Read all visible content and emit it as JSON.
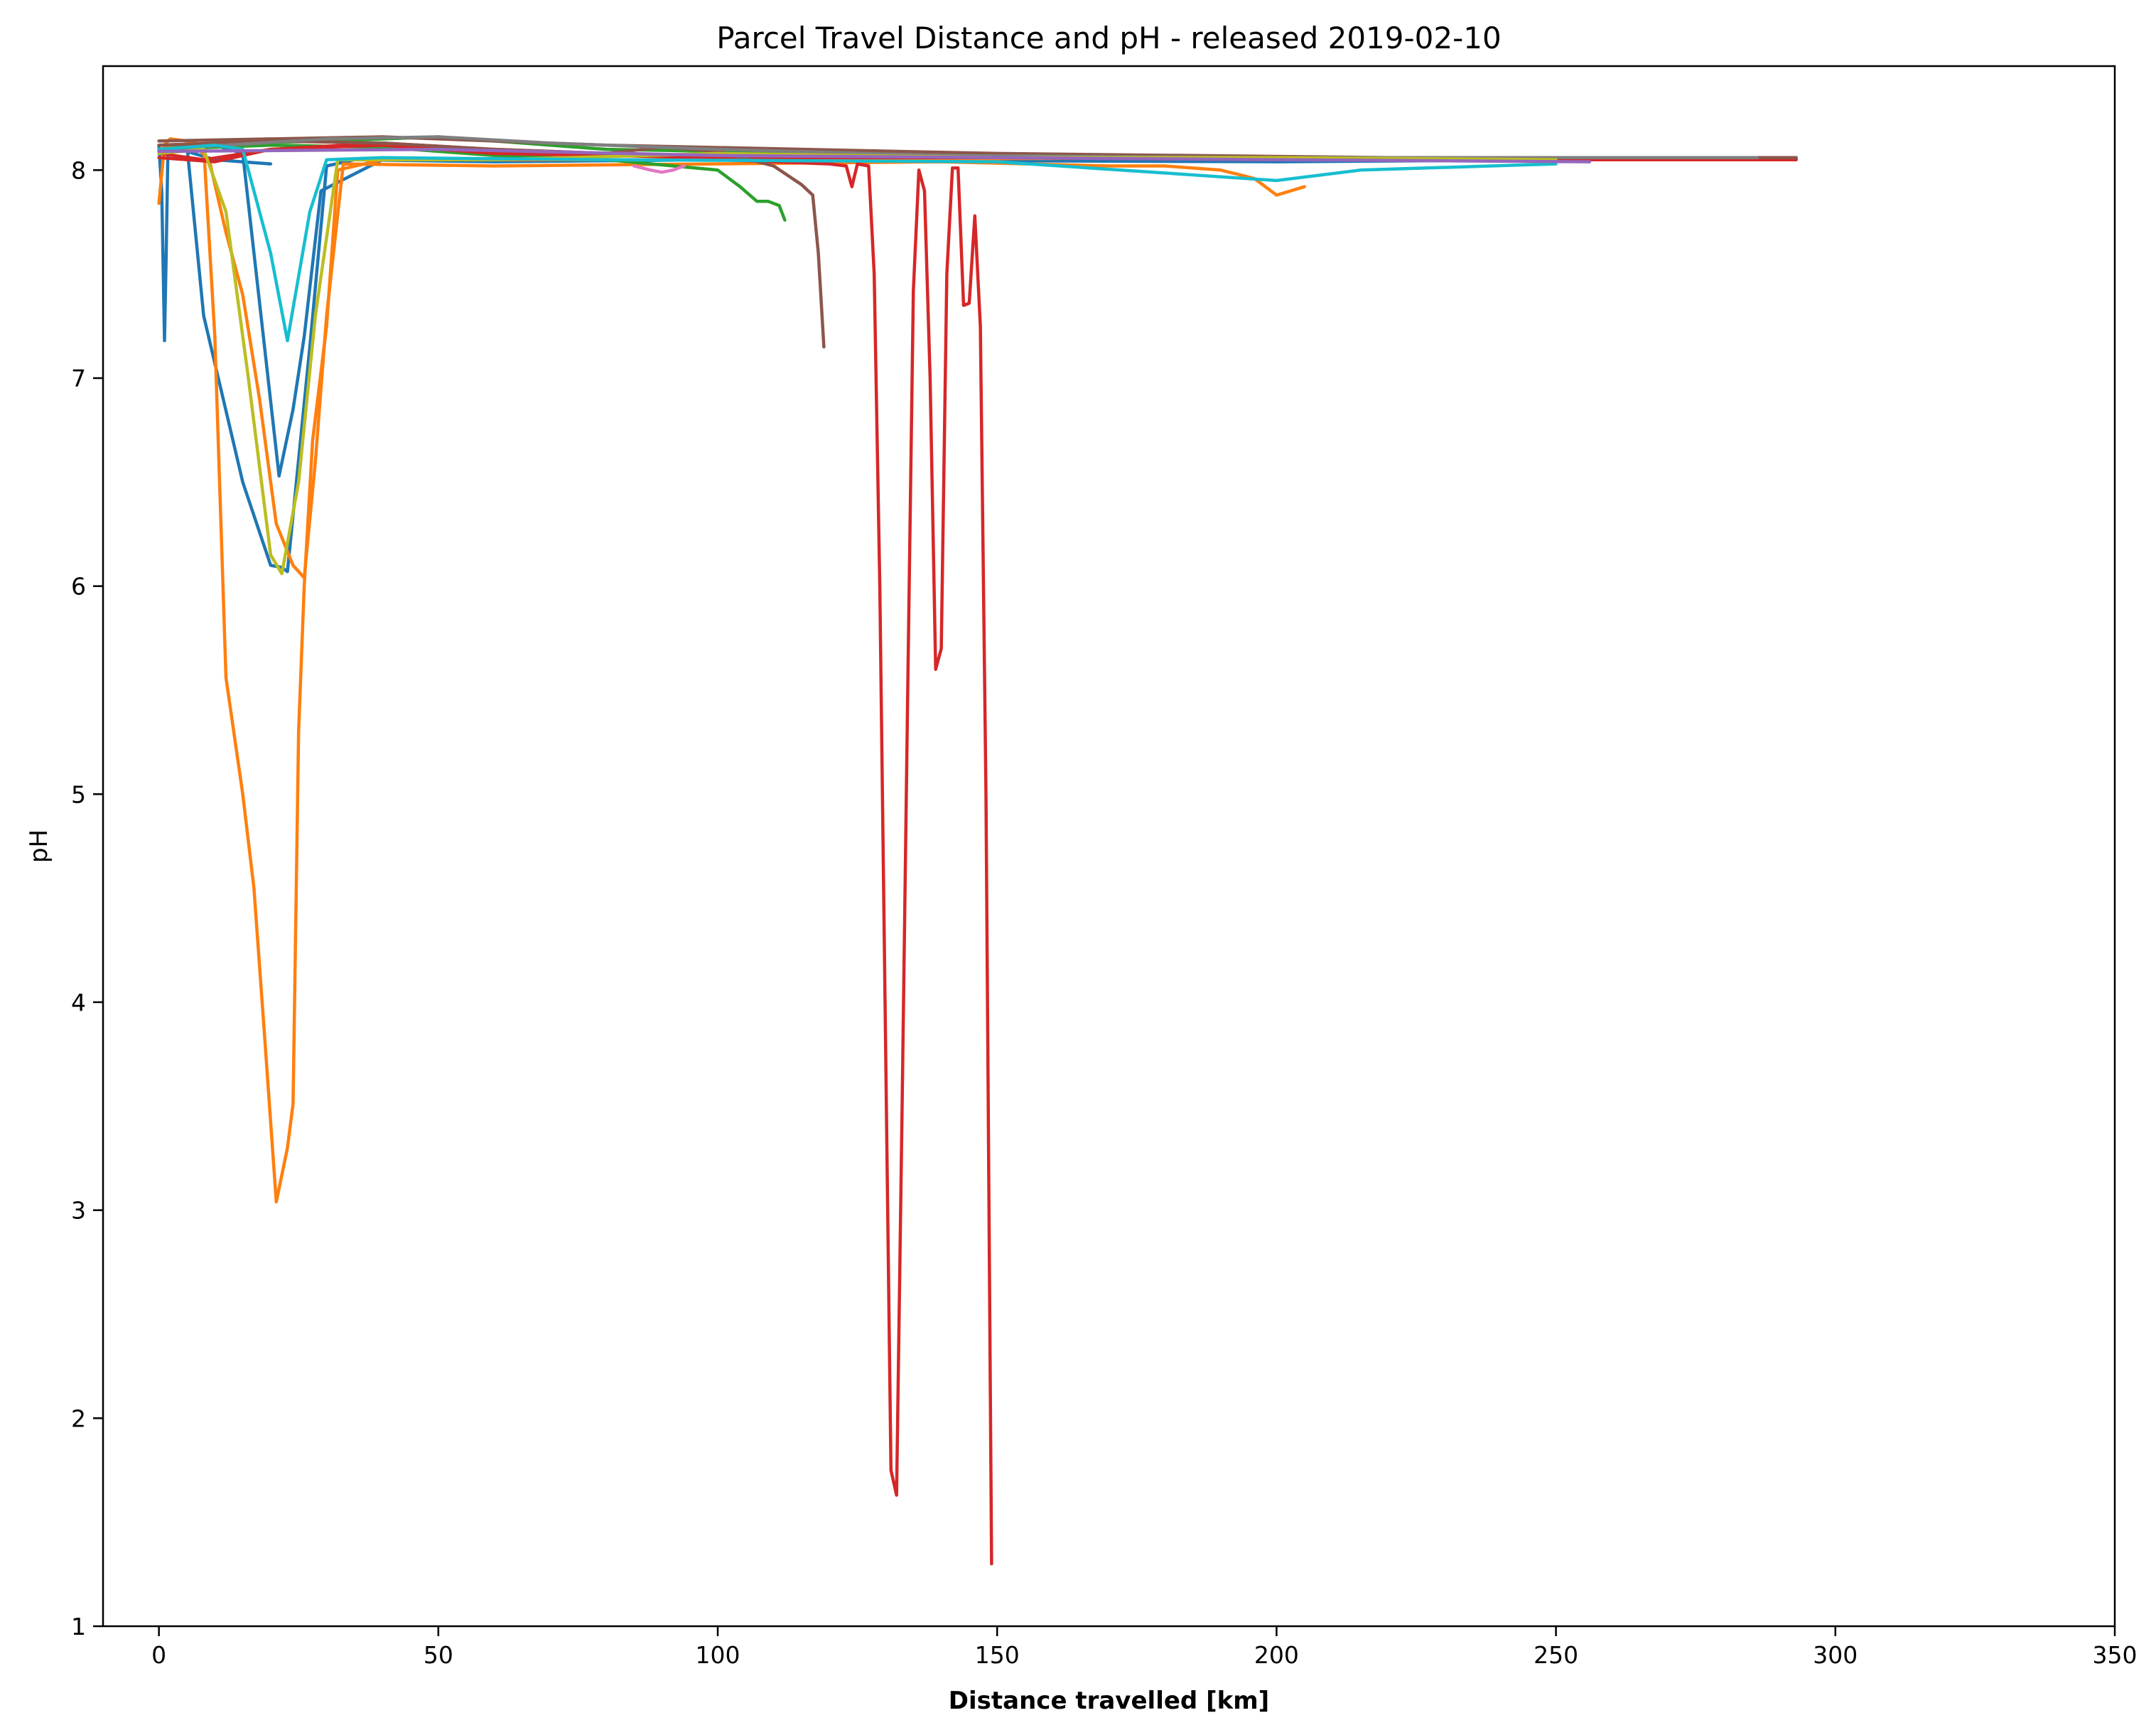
{
  "chart_data": {
    "type": "line",
    "title": "Parcel Travel Distance and pH - released 2019-02-10",
    "xlabel": "Distance travelled [km]",
    "ylabel": "pH",
    "xlim": [
      -10,
      350
    ],
    "ylim": [
      1,
      8.5
    ],
    "xticks": [
      0,
      50,
      100,
      150,
      200,
      250,
      300,
      350
    ],
    "yticks": [
      1,
      2,
      3,
      4,
      5,
      6,
      7,
      8
    ],
    "grid": false,
    "legend": "none",
    "series": [
      {
        "color": "#1f77b4",
        "x": [
          0,
          0.5,
          1,
          1.3,
          1.6,
          2.5,
          5,
          10,
          20
        ],
        "y": [
          8.12,
          7.9,
          7.18,
          7.6,
          8.08,
          8.1,
          8.09,
          8.05,
          8.03
        ]
      },
      {
        "color": "#1f77b4",
        "x": [
          0,
          5,
          8,
          15,
          20,
          22,
          23,
          27,
          30,
          35,
          60,
          100,
          200,
          255
        ],
        "y": [
          8.1,
          8.12,
          7.3,
          6.5,
          6.1,
          6.09,
          6.07,
          7.15,
          8.02,
          8.05,
          8.04,
          8.05,
          8.04,
          8.05
        ]
      },
      {
        "color": "#1f77b4",
        "x": [
          0,
          10,
          15,
          21.5,
          24,
          26,
          29,
          40,
          80
        ],
        "y": [
          8.1,
          8.12,
          8.08,
          6.53,
          6.85,
          7.2,
          7.9,
          8.05,
          8.05
        ]
      },
      {
        "color": "#ff7f0e",
        "x": [
          0,
          1,
          2,
          5,
          8,
          10,
          12,
          15,
          17,
          19,
          21,
          23,
          24,
          25,
          26,
          27.5,
          30,
          32,
          40,
          60,
          100,
          200,
          220,
          240
        ],
        "y": [
          7.84,
          8.12,
          8.15,
          8.14,
          8.12,
          7.2,
          5.56,
          5.0,
          4.55,
          3.8,
          3.04,
          3.3,
          3.51,
          5.3,
          6.0,
          6.7,
          7.25,
          8.0,
          8.05,
          8.05,
          8.05,
          8.06,
          8.05,
          8.05
        ]
      },
      {
        "color": "#ff7f0e",
        "x": [
          0,
          6,
          9,
          12,
          15,
          18,
          21,
          24,
          26,
          28,
          30,
          33,
          60,
          140,
          170,
          180,
          190,
          196,
          200,
          205
        ],
        "y": [
          8.1,
          8.13,
          8.05,
          7.7,
          7.4,
          6.9,
          6.3,
          6.1,
          6.04,
          6.6,
          7.3,
          8.03,
          8.02,
          8.04,
          8.02,
          8.02,
          8.0,
          7.96,
          7.88,
          7.92
        ]
      },
      {
        "color": "#2ca02c",
        "x": [
          0,
          20,
          40,
          60,
          80,
          100,
          104,
          107,
          109,
          111,
          112
        ],
        "y": [
          8.1,
          8.12,
          8.11,
          8.07,
          8.05,
          8.0,
          7.92,
          7.85,
          7.85,
          7.83,
          7.76
        ]
      },
      {
        "color": "#2ca02c",
        "x": [
          0,
          30,
          50,
          80,
          120,
          160,
          200,
          240
        ],
        "y": [
          8.12,
          8.14,
          8.16,
          8.1,
          8.08,
          8.06,
          8.06,
          8.05
        ]
      },
      {
        "color": "#d62728",
        "x": [
          0,
          8,
          20,
          40,
          60,
          80,
          100,
          120,
          123,
          124,
          125,
          127,
          128,
          129,
          131,
          132,
          133,
          134,
          135,
          136,
          137,
          138,
          139,
          140,
          141,
          142,
          143,
          144,
          145,
          146,
          147,
          148,
          149
        ],
        "y": [
          8.08,
          8.05,
          8.1,
          8.13,
          8.1,
          8.08,
          8.05,
          8.03,
          8.02,
          7.92,
          8.03,
          8.02,
          7.5,
          6.0,
          1.75,
          1.63,
          3.5,
          5.5,
          7.42,
          8.0,
          7.9,
          7.0,
          5.6,
          5.7,
          7.5,
          8.01,
          8.01,
          7.35,
          7.36,
          7.78,
          7.25,
          5.0,
          1.3
        ]
      },
      {
        "color": "#d62728",
        "x": [
          0,
          10,
          20,
          40,
          60,
          100,
          150,
          200,
          250,
          293
        ],
        "y": [
          8.06,
          8.04,
          8.1,
          8.12,
          8.08,
          8.06,
          8.06,
          8.05,
          8.05,
          8.05
        ]
      },
      {
        "color": "#8c564b",
        "x": [
          0,
          20,
          40,
          60,
          80,
          90,
          100,
          110,
          115,
          117,
          118,
          119
        ],
        "y": [
          8.12,
          8.14,
          8.13,
          8.1,
          8.08,
          8.11,
          8.09,
          8.02,
          7.93,
          7.88,
          7.6,
          7.15
        ]
      },
      {
        "color": "#8c564b",
        "x": [
          0,
          40,
          80,
          150,
          220,
          293
        ],
        "y": [
          8.14,
          8.16,
          8.12,
          8.08,
          8.06,
          8.06
        ]
      },
      {
        "color": "#e377c2",
        "x": [
          85,
          88,
          90,
          92,
          94
        ],
        "y": [
          8.02,
          8.0,
          7.99,
          8.0,
          8.02
        ]
      },
      {
        "color": "#7f7f7f",
        "x": [
          0,
          30,
          50,
          70,
          100,
          140,
          200,
          286
        ],
        "y": [
          8.1,
          8.15,
          8.16,
          8.13,
          8.1,
          8.07,
          8.06,
          8.06
        ]
      },
      {
        "color": "#bcbd22",
        "x": [
          0,
          8,
          12,
          16,
          20,
          22,
          25,
          28,
          32,
          60,
          100,
          150,
          200,
          250
        ],
        "y": [
          8.08,
          8.1,
          7.8,
          7.0,
          6.15,
          6.06,
          6.5,
          7.3,
          8.05,
          8.05,
          8.08,
          8.06,
          8.06,
          8.05
        ]
      },
      {
        "color": "#17becf",
        "x": [
          0,
          10,
          15,
          20,
          23,
          27,
          30,
          40,
          80,
          150,
          200,
          215,
          250
        ],
        "y": [
          8.1,
          8.12,
          8.1,
          7.6,
          7.18,
          7.8,
          8.05,
          8.06,
          8.05,
          8.04,
          7.95,
          8.0,
          8.03
        ]
      },
      {
        "color": "#9467bd",
        "x": [
          0,
          50,
          100,
          150,
          200,
          256
        ],
        "y": [
          8.09,
          8.1,
          8.07,
          8.06,
          8.05,
          8.04
        ]
      }
    ]
  }
}
